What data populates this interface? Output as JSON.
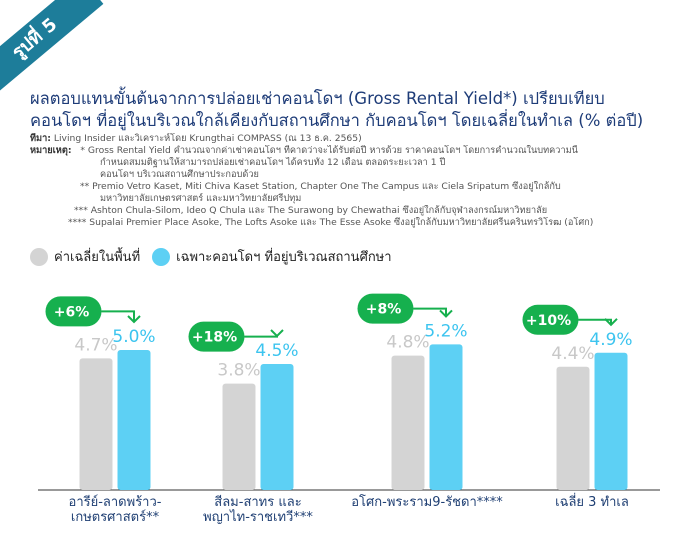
{
  "badge": "รูปที่ 5",
  "title_line1": "ผลตอบแทนขั้นต้นจากการปล่อยเช่าคอนโดฯ (Gross Rental Yield*) เปรียบเทียบ",
  "title_line2": "คอนโดฯ ที่อยู่ในบริเวณใกล้เคียงกับสถานศึกษา กับคอนโดฯ โดยเฉลี่ยในทำเล (% ต่อปี)",
  "source_label": "ที่มา:",
  "source_text": "Living Insider และวิเคราะห์โดย Krungthai COMPASS (ณ 13 ธ.ค. 2565)",
  "note_label": "หมายเหตุ:",
  "notes": [
    "* Gross Rental Yield คำนวณจากค่าเช่าคอนโดฯ ที่คาดว่าจะได้รับต่อปี หารด้วย ราคาคอนโดฯ โดยการคำนวณในบทความนี้",
    "กำหนดสมมติฐานให้สามารถปล่อยเช่าคอนโดฯ ได้ครบทั้ง 12 เดือน ตลอดระยะเวลา 1 ปี",
    "คอนโดฯ บริเวณสถานศึกษาประกอบด้วย",
    "** Premio Vetro Kaset, Miti Chiva Kaset Station, Chapter One The Campus และ Ciela Sripatum ซึ่งอยู่ใกล้กับ",
    "มหาวิทยาลัยเกษตรศาสตร์ และมหาวิทยาลัยศรีปทุม",
    "*** Ashton Chula-Silom, Ideo Q Chula และ The Surawong by Chewathai ซึ่งอยู่ใกล้กับจุฬาลงกรณ์มหาวิทยาลัย",
    "**** Supalai Premier Place Asoke, The Lofts Asoke และ The Esse Asoke ซึ่งอยู่ใกล้กับมหาวิทยาลัยศรีนครินทรวิโรฒ (อโศก)"
  ],
  "legend": {
    "avg_label": "ค่าเฉลี่ยในพื้นที่",
    "condo_label": "เฉพาะคอนโดฯ ที่อยู่บริเวณสถานศึกษา"
  },
  "colors": {
    "avg": "#d4d4d4",
    "condo": "#5dd0f4",
    "green": "#16b04e",
    "title": "#1e3c78",
    "axis_text": "#1f3f73"
  },
  "chart_data": {
    "type": "bar",
    "categories": [
      [
        "อารีย์-ลาดพร้าว-",
        "เกษตรศาสตร์**"
      ],
      [
        "สีลม-สาทร และ",
        "พญาไท-ราชเทวี***"
      ],
      [
        "อโศก-พระราม9-รัชดา****"
      ],
      [
        "เฉลี่ย 3 ทำเล"
      ]
    ],
    "series": [
      {
        "name": "ค่าเฉลี่ยในพื้นที่",
        "values": [
          4.7,
          3.8,
          4.8,
          4.4
        ],
        "labels": [
          "4.7%",
          "3.8%",
          "4.8%",
          "4.4%"
        ]
      },
      {
        "name": "เฉพาะคอนโดฯ ที่อยู่บริเวณสถานศึกษา",
        "values": [
          5.0,
          4.5,
          5.2,
          4.9
        ],
        "labels": [
          "5.0%",
          "4.5%",
          "5.2%",
          "4.9%"
        ]
      }
    ],
    "diff_labels": [
      "+6%",
      "+18%",
      "+8%",
      "+10%"
    ],
    "ylim": [
      0,
      5.5
    ],
    "grid": false
  }
}
